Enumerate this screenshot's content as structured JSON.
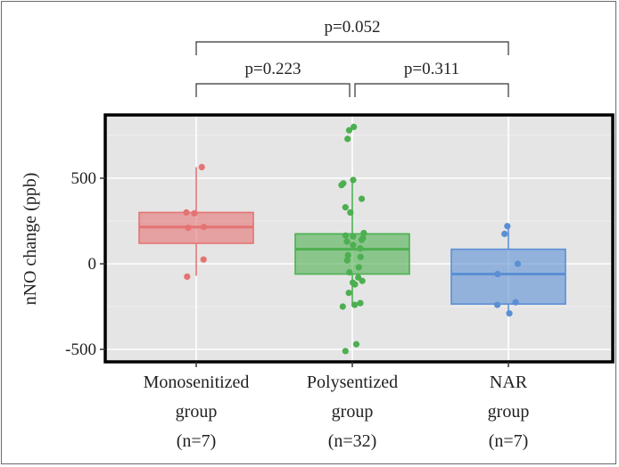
{
  "chart_data": {
    "type": "box",
    "ylabel": "nNO change (ppb)",
    "y_ticks": [
      500,
      0,
      -500
    ],
    "y_tick_labels": [
      "500",
      "0",
      "-500"
    ],
    "ylim": [
      -560,
      800
    ],
    "grid": true,
    "categories": [
      {
        "label_lines": [
          "Monosenitized",
          "group",
          "(n=7)"
        ],
        "color": "#e57373",
        "box": {
          "whisker_low": -70,
          "q1": 120,
          "median": 215,
          "q3": 300,
          "whisker_high": 565
        },
        "points": [
          565,
          300,
          295,
          215,
          210,
          25,
          -75
        ]
      },
      {
        "label_lines": [
          "Polysentized",
          "group",
          "(n=32)"
        ],
        "color": "#4caf50",
        "box": {
          "whisker_low": -250,
          "q1": -60,
          "median": 85,
          "q3": 175,
          "whisker_high": 490
        },
        "points": [
          800,
          780,
          730,
          490,
          470,
          460,
          380,
          330,
          300,
          180,
          165,
          160,
          150,
          140,
          130,
          110,
          90,
          50,
          40,
          20,
          -20,
          -50,
          -80,
          -100,
          -110,
          -120,
          -170,
          -230,
          -240,
          -250,
          -470,
          -510
        ]
      },
      {
        "label_lines": [
          "NAR",
          "group",
          "(n=7)"
        ],
        "color": "#5b8fd4",
        "box": {
          "whisker_low": -290,
          "q1": -235,
          "median": -60,
          "q3": 85,
          "whisker_high": 220
        },
        "points": [
          220,
          175,
          0,
          -60,
          -225,
          -240,
          -290
        ]
      }
    ],
    "comparisons": [
      {
        "label": "p=0.223",
        "from": 0,
        "to": 1
      },
      {
        "label": "p=0.311",
        "from": 1,
        "to": 2
      },
      {
        "label": "p=0.052",
        "from": 0,
        "to": 2
      }
    ]
  }
}
